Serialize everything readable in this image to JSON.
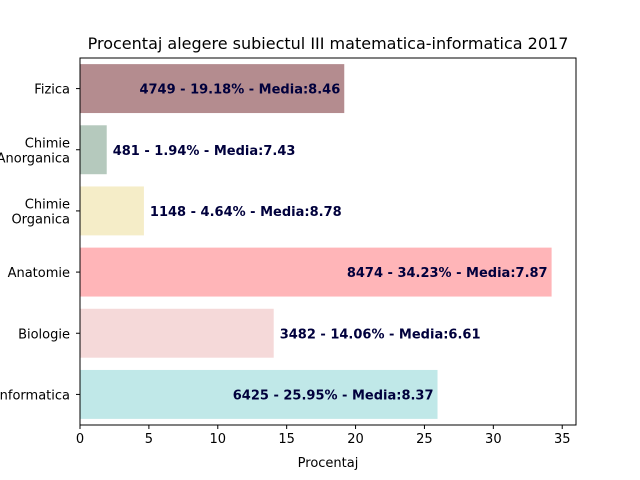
{
  "chart_data": {
    "type": "bar",
    "orientation": "horizontal",
    "title": "Procentaj alegere subiectul III matematica-informatica 2017",
    "xlabel": "Procentaj",
    "ylabel": "",
    "xlim": [
      0,
      36
    ],
    "xticks": [
      0,
      5,
      10,
      15,
      20,
      25,
      30,
      35
    ],
    "grid": false,
    "label_color": "#00003c",
    "categories": [
      {
        "lines": [
          "Fizica"
        ],
        "value": 19.18,
        "label": "4749 - 19.18% - Media:8.46",
        "color": "#b48c8f"
      },
      {
        "lines": [
          "Chimie",
          "Anorganica"
        ],
        "value": 1.94,
        "label": "481 - 1.94% - Media:7.43",
        "color": "#b5c9bd"
      },
      {
        "lines": [
          "Chimie",
          "Organica"
        ],
        "value": 4.64,
        "label": "1148 - 4.64% - Media:8.78",
        "color": "#f5edc8"
      },
      {
        "lines": [
          "Anatomie"
        ],
        "value": 34.23,
        "label": "8474 - 34.23% - Media:7.87",
        "color": "#ffb5b8"
      },
      {
        "lines": [
          "Biologie"
        ],
        "value": 14.06,
        "label": "3482 - 14.06% - Media:6.61",
        "color": "#f5d9d9"
      },
      {
        "lines": [
          "Informatica"
        ],
        "value": 25.95,
        "label": "6425 - 25.95% - Media:8.37",
        "color": "#c0e8e8"
      }
    ]
  }
}
